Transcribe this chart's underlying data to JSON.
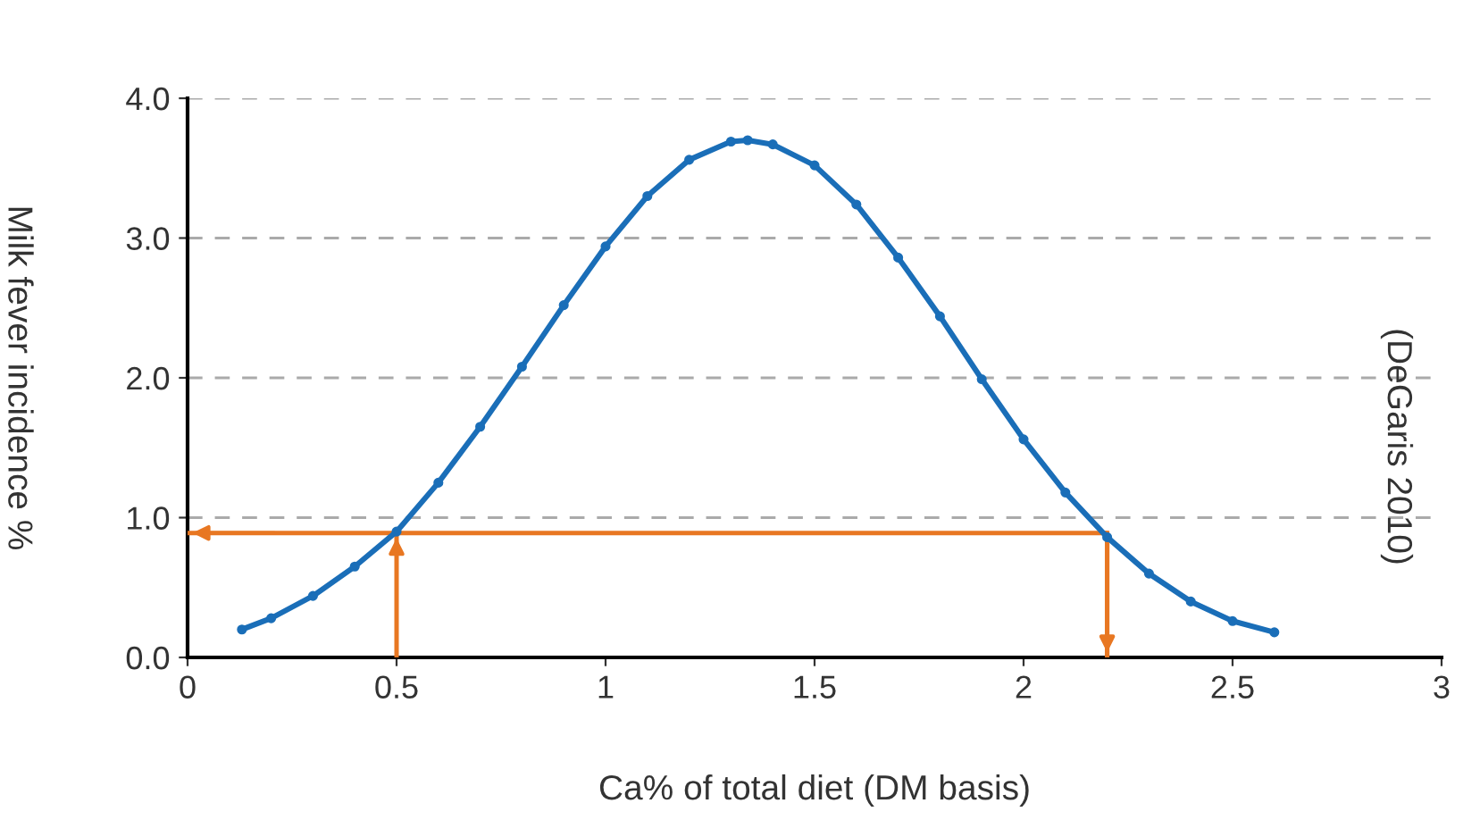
{
  "chart_data": {
    "type": "line",
    "xlabel": "Ca% of total diet (DM basis)",
    "ylabel": "Milk fever incidence %",
    "annotations": [
      "(DeGaris 2010)"
    ],
    "series": [
      {
        "color": "#1a6eb8",
        "marker": "circle",
        "x": [
          0.13,
          0.2,
          0.3,
          0.4,
          0.5,
          0.6,
          0.7,
          0.8,
          0.9,
          1.0,
          1.1,
          1.2,
          1.3,
          1.34,
          1.4,
          1.5,
          1.6,
          1.7,
          1.8,
          1.9,
          2.0,
          2.1,
          2.2,
          2.3,
          2.4,
          2.5,
          2.6
        ],
        "values": [
          0.2,
          0.28,
          0.44,
          0.65,
          0.9,
          1.25,
          1.65,
          2.08,
          2.52,
          2.94,
          3.3,
          3.56,
          3.69,
          3.7,
          3.67,
          3.52,
          3.24,
          2.86,
          2.44,
          1.99,
          1.56,
          1.18,
          0.86,
          0.6,
          0.4,
          0.26,
          0.18
        ]
      },
      {
        "color": "#e87722",
        "marker": "none",
        "x": [
          0.5,
          0.5
        ],
        "values": [
          0,
          0.89
        ]
      },
      {
        "color": "#e87722",
        "marker": "none",
        "x": [
          2.2,
          2.2,
          0.0
        ],
        "values": [
          0,
          0.89,
          0.89
        ]
      },
      {
        "color": "#e87722",
        "marker": "none",
        "x": [
          2.2,
          2.2
        ],
        "values": [
          0.89,
          0
        ]
      }
    ],
    "xlim": [
      0,
      3
    ],
    "xticks": [
      0,
      0.5,
      1,
      1.5,
      2,
      2.5,
      3
    ],
    "ylim": [
      0,
      4
    ],
    "yticks": [
      {
        "value": 0,
        "label": "0.0"
      },
      {
        "value": 1,
        "label": "1.0"
      },
      {
        "value": 2,
        "label": "2.0"
      },
      {
        "value": 3,
        "label": "3.0"
      },
      {
        "value": 4,
        "label": "4.0"
      }
    ],
    "grid": "y",
    "legend": false
  }
}
